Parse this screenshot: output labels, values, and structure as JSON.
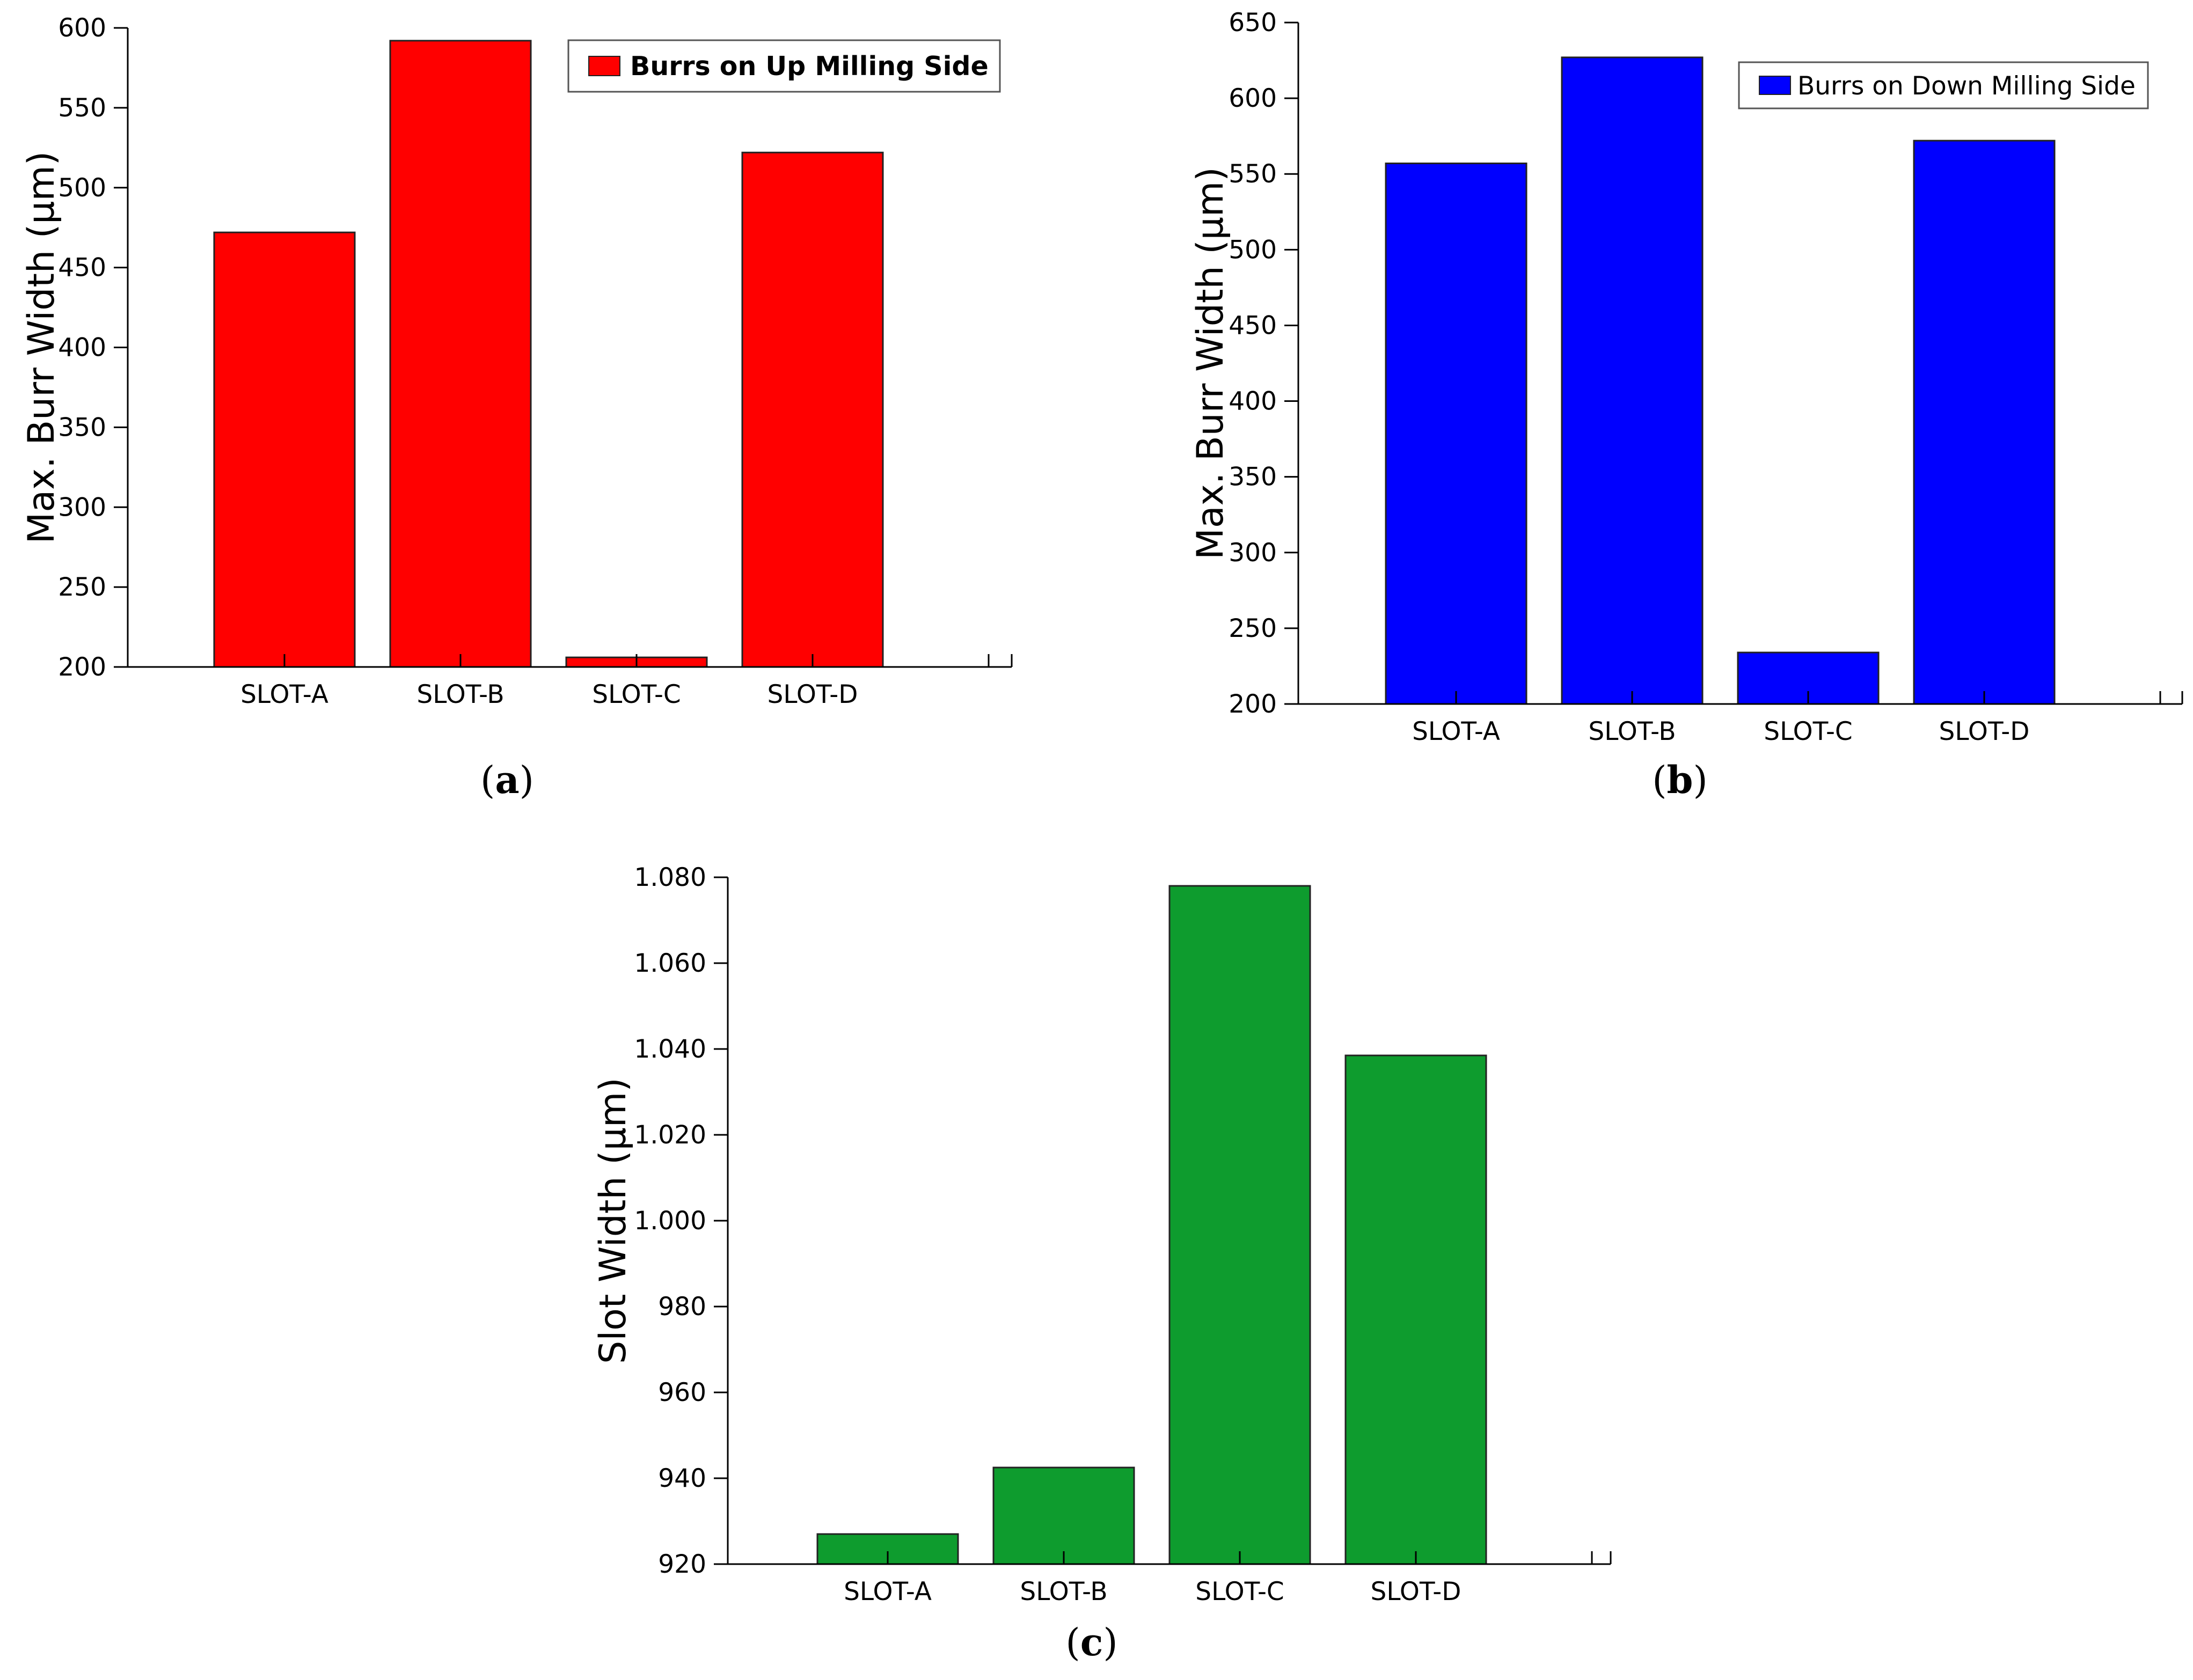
{
  "chart_data": [
    {
      "id": "a",
      "type": "bar",
      "caption_open": "(",
      "caption_letter": "a",
      "caption_close": ")",
      "categories": [
        "SLOT-A",
        "SLOT-B",
        "SLOT-C",
        "SLOT-D"
      ],
      "series": [
        {
          "name": "Burrs on Up Milling Side",
          "values": [
            472,
            592,
            206,
            522
          ]
        }
      ],
      "color": "#ff0000",
      "ylabel": "Max. Burr Width (µm)",
      "xlabel": "",
      "ylim": [
        200,
        600
      ],
      "yticks": [
        "200",
        "250",
        "300",
        "350",
        "400",
        "450",
        "500",
        "550",
        "600"
      ],
      "ytick_values": [
        200,
        250,
        300,
        350,
        400,
        450,
        500,
        550,
        600
      ],
      "legend_position": "top-right",
      "grid": false
    },
    {
      "id": "b",
      "type": "bar",
      "caption_open": "(",
      "caption_letter": "b",
      "caption_close": ")",
      "categories": [
        "SLOT-A",
        "SLOT-B",
        "SLOT-C",
        "SLOT-D"
      ],
      "series": [
        {
          "name": "Burrs on Down Milling Side",
          "values": [
            557,
            627,
            234,
            572
          ]
        }
      ],
      "color": "#0000ff",
      "ylabel": "Max. Burr Width (µm)",
      "xlabel": "",
      "ylim": [
        200,
        650
      ],
      "yticks": [
        "200",
        "250",
        "300",
        "350",
        "400",
        "450",
        "500",
        "550",
        "600",
        "650"
      ],
      "ytick_values": [
        200,
        250,
        300,
        350,
        400,
        450,
        500,
        550,
        600,
        650
      ],
      "legend_position": "top-right",
      "grid": false
    },
    {
      "id": "c",
      "type": "bar",
      "caption_open": "(",
      "caption_letter": "c",
      "caption_close": ")",
      "categories": [
        "SLOT-A",
        "SLOT-B",
        "SLOT-C",
        "SLOT-D"
      ],
      "series": [
        {
          "name": "Slot Width",
          "values": [
            927,
            942.5,
            1078,
            1038.5
          ]
        }
      ],
      "color": "#0e9c2e",
      "ylabel": "Slot Width (µm)",
      "xlabel": "",
      "ylim": [
        920,
        1080
      ],
      "yticks": [
        "920",
        "940",
        "960",
        "980",
        "1.000",
        "1.020",
        "1.040",
        "1.060",
        "1.080"
      ],
      "ytick_values": [
        920,
        940,
        960,
        980,
        1000,
        1020,
        1040,
        1060,
        1080
      ],
      "legend_position": "none",
      "grid": false
    }
  ]
}
